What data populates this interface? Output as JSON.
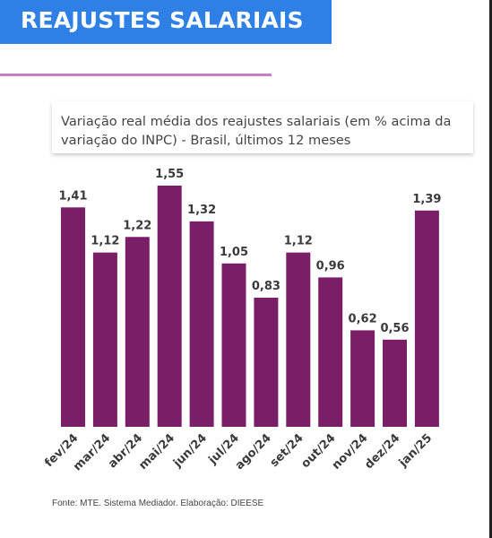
{
  "header": {
    "title": "REAJUSTES SALARIAIS",
    "banner_color": "#2f80e6",
    "divider_color": "#c77dbe"
  },
  "subtitle": "Variação real média dos reajustes salariais (em % acima da variação do INPC) - Brasil, últimos 12 meses",
  "source": "Fonte: MTE. Sistema Mediador. Elaboração: DIEESE",
  "chart_data": {
    "type": "bar",
    "title": "Variação real média dos reajustes salariais (em % acima da variação do INPC) - Brasil, últimos 12 meses",
    "categories": [
      "fev/24",
      "mar/24",
      "abr/24",
      "mai/24",
      "jun/24",
      "jul/24",
      "ago/24",
      "set/24",
      "out/24",
      "nov/24",
      "dez/24",
      "jan/25"
    ],
    "values": [
      1.41,
      1.12,
      1.22,
      1.55,
      1.32,
      1.05,
      0.83,
      1.12,
      0.96,
      0.62,
      0.56,
      1.39
    ],
    "value_labels": [
      "1,41",
      "1,12",
      "1,22",
      "1,55",
      "1,32",
      "1,05",
      "0,83",
      "1,12",
      "0,96",
      "0,62",
      "0,56",
      "1,39"
    ],
    "xlabel": "",
    "ylabel": "",
    "ylim": [
      0,
      1.55
    ],
    "grid": false,
    "bar_color": "#7b1e68",
    "label_color": "#3a3a3a"
  }
}
